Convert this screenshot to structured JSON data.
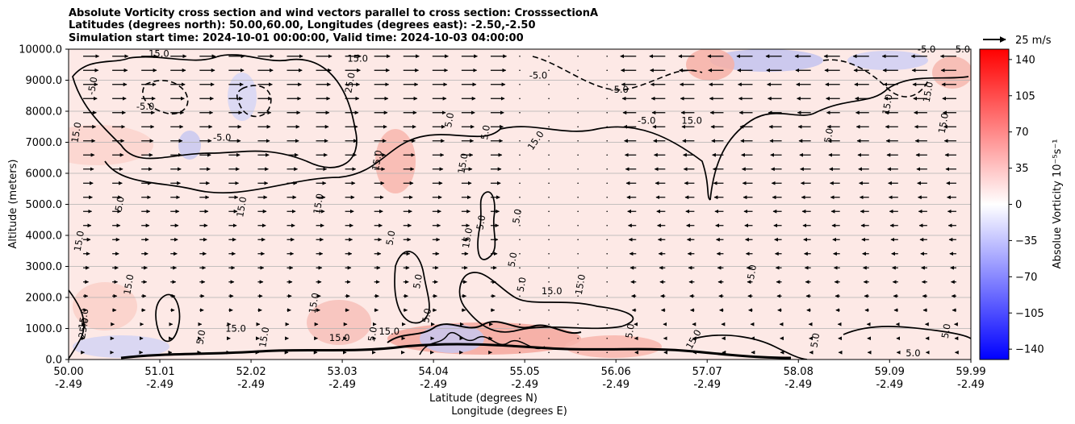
{
  "chart_data": {
    "type": "heatmap",
    "title_lines": [
      "Absolute Vorticity cross section and wind vectors parallel to cross section: CrosssectionA",
      "Latitudes (degrees north): 50.00,60.00, Longitudes (degrees east): -2.50,-2.50",
      "Simulation start time: 2024-10-01 00:00:00, Valid time: 2024-10-03 04:00:00"
    ],
    "xlabel_lines": [
      "Latitude (degrees N)",
      "Longitude (degrees E)"
    ],
    "ylabel": "Altitude (meters)",
    "ylim": [
      0,
      10000
    ],
    "xlim": [
      50.0,
      59.99
    ],
    "x_ticks": [
      {
        "lat": 50.0,
        "lat_label": "50.00",
        "lon_label": "-2.49"
      },
      {
        "lat": 51.01,
        "lat_label": "51.01",
        "lon_label": "-2.49"
      },
      {
        "lat": 52.02,
        "lat_label": "52.02",
        "lon_label": "-2.49"
      },
      {
        "lat": 53.03,
        "lat_label": "53.03",
        "lon_label": "-2.49"
      },
      {
        "lat": 54.04,
        "lat_label": "54.04",
        "lon_label": "-2.49"
      },
      {
        "lat": 55.05,
        "lat_label": "55.05",
        "lon_label": "-2.49"
      },
      {
        "lat": 56.06,
        "lat_label": "56.06",
        "lon_label": "-2.49"
      },
      {
        "lat": 57.07,
        "lat_label": "57.07",
        "lon_label": "-2.49"
      },
      {
        "lat": 58.08,
        "lat_label": "58.08",
        "lon_label": "-2.49"
      },
      {
        "lat": 59.09,
        "lat_label": "59.09",
        "lon_label": "-2.49"
      },
      {
        "lat": 59.99,
        "lat_label": "59.99",
        "lon_label": "-2.49"
      }
    ],
    "y_ticks": [
      {
        "value": 0,
        "label": "0.0"
      },
      {
        "value": 1000,
        "label": "1000.0"
      },
      {
        "value": 2000,
        "label": "2000.0"
      },
      {
        "value": 3000,
        "label": "3000.0"
      },
      {
        "value": 4000,
        "label": "4000.0"
      },
      {
        "value": 5000,
        "label": "5000.0"
      },
      {
        "value": 6000,
        "label": "6000.0"
      },
      {
        "value": 7000,
        "label": "7000.0"
      },
      {
        "value": 8000,
        "label": "8000.0"
      },
      {
        "value": 9000,
        "label": "9000.0"
      },
      {
        "value": 10000,
        "label": "10000.0"
      }
    ],
    "grid": "horizontal",
    "colorbar": {
      "label": "Absolue Vorticity 10⁻⁵s⁻¹",
      "range": [
        -150,
        150
      ],
      "colormap": "bwr",
      "ticks": [
        {
          "value": 140,
          "label": "140"
        },
        {
          "value": 105,
          "label": "105"
        },
        {
          "value": 70,
          "label": "70"
        },
        {
          "value": 35,
          "label": "35"
        },
        {
          "value": 0,
          "label": "0"
        },
        {
          "value": -35,
          "label": "−35"
        },
        {
          "value": -70,
          "label": "−70"
        },
        {
          "value": -105,
          "label": "−105"
        },
        {
          "value": -140,
          "label": "−140"
        }
      ]
    },
    "quiver_key": {
      "label": "25 m/s",
      "speed": 25
    },
    "contour_labels": [
      {
        "text": "15.0",
        "lat": 51.0,
        "alt": 9750,
        "rot": 0
      },
      {
        "text": "15.0",
        "lat": 53.2,
        "alt": 9600,
        "rot": 0
      },
      {
        "text": "-5.0",
        "lat": 50.3,
        "alt": 8800,
        "rot": -80
      },
      {
        "text": "-5.0",
        "lat": 50.85,
        "alt": 8050,
        "rot": 0
      },
      {
        "text": "15.0",
        "lat": 50.12,
        "alt": 7300,
        "rot": -80
      },
      {
        "text": "-5.0",
        "lat": 51.7,
        "alt": 7050,
        "rot": 0
      },
      {
        "text": "25.0",
        "lat": 53.15,
        "alt": 8900,
        "rot": -80
      },
      {
        "text": "15.0",
        "lat": 53.45,
        "alt": 6400,
        "rot": -80
      },
      {
        "text": "-5.0",
        "lat": 55.2,
        "alt": 9050,
        "rot": 0
      },
      {
        "text": "-5.0",
        "lat": 56.1,
        "alt": 8600,
        "rot": 0
      },
      {
        "text": "-5.0",
        "lat": 56.4,
        "alt": 7600,
        "rot": 0
      },
      {
        "text": "15.0",
        "lat": 56.9,
        "alt": 7600,
        "rot": 0
      },
      {
        "text": "15.0",
        "lat": 55.2,
        "alt": 7000,
        "rot": -55
      },
      {
        "text": "5.0",
        "lat": 54.65,
        "alt": 7300,
        "rot": -80
      },
      {
        "text": "5.0",
        "lat": 54.25,
        "alt": 7700,
        "rot": -80
      },
      {
        "text": "15.0",
        "lat": 54.4,
        "alt": 6300,
        "rot": -80
      },
      {
        "text": "5.0",
        "lat": 50.6,
        "alt": 5000,
        "rot": -80
      },
      {
        "text": "15.0",
        "lat": 51.95,
        "alt": 4900,
        "rot": -80
      },
      {
        "text": "15.0",
        "lat": 52.8,
        "alt": 5000,
        "rot": -80
      },
      {
        "text": "15.0",
        "lat": 50.15,
        "alt": 3800,
        "rot": -80
      },
      {
        "text": "5.0",
        "lat": 53.6,
        "alt": 3900,
        "rot": -80
      },
      {
        "text": "5.0",
        "lat": 54.6,
        "alt": 4400,
        "rot": -80
      },
      {
        "text": "5.0",
        "lat": 55.0,
        "alt": 4600,
        "rot": -80
      },
      {
        "text": "5.0",
        "lat": 54.95,
        "alt": 3200,
        "rot": -80
      },
      {
        "text": "15.0",
        "lat": 54.45,
        "alt": 3900,
        "rot": -80
      },
      {
        "text": "5.0",
        "lat": 57.6,
        "alt": 2800,
        "rot": -80
      },
      {
        "text": "15.0",
        "lat": 50.7,
        "alt": 2400,
        "rot": -80
      },
      {
        "text": "15.0",
        "lat": 52.75,
        "alt": 1800,
        "rot": -80
      },
      {
        "text": "15.0",
        "lat": 55.35,
        "alt": 2100,
        "rot": 0
      },
      {
        "text": "15.0",
        "lat": 55.7,
        "alt": 2400,
        "rot": -80
      },
      {
        "text": "5.0",
        "lat": 55.05,
        "alt": 2400,
        "rot": -80
      },
      {
        "text": "5.0",
        "lat": 53.9,
        "alt": 2500,
        "rot": -80
      },
      {
        "text": "15.0",
        "lat": 50.2,
        "alt": 1300,
        "rot": -80
      },
      {
        "text": "25.0",
        "lat": 50.2,
        "alt": 1000,
        "rot": -80
      },
      {
        "text": "15.0",
        "lat": 51.85,
        "alt": 900,
        "rot": 0
      },
      {
        "text": "15.0",
        "lat": 53.0,
        "alt": 600,
        "rot": 0
      },
      {
        "text": "5.0",
        "lat": 51.5,
        "alt": 700,
        "rot": -80
      },
      {
        "text": "15.0",
        "lat": 52.2,
        "alt": 700,
        "rot": -80
      },
      {
        "text": "5.0",
        "lat": 53.4,
        "alt": 800,
        "rot": -80
      },
      {
        "text": "15.0",
        "lat": 53.55,
        "alt": 800,
        "rot": 0
      },
      {
        "text": "5.0",
        "lat": 54.0,
        "alt": 1400,
        "rot": -80
      },
      {
        "text": "5.0",
        "lat": 56.25,
        "alt": 900,
        "rot": -80
      },
      {
        "text": "15.0",
        "lat": 56.95,
        "alt": 600,
        "rot": -60
      },
      {
        "text": "5.0",
        "lat": 58.3,
        "alt": 600,
        "rot": -80
      },
      {
        "text": "5.0",
        "lat": 59.75,
        "alt": 900,
        "rot": -80
      },
      {
        "text": "5.0",
        "lat": 59.35,
        "alt": 100,
        "rot": 0
      },
      {
        "text": "15.0",
        "lat": 59.72,
        "alt": 7600,
        "rot": -80
      },
      {
        "text": "15.0",
        "lat": 59.55,
        "alt": 8600,
        "rot": -80
      },
      {
        "text": "5.0",
        "lat": 59.9,
        "alt": 9900,
        "rot": 0
      },
      {
        "text": "-5.0",
        "lat": 59.5,
        "alt": 9900,
        "rot": 0
      },
      {
        "text": "5.0",
        "lat": 58.45,
        "alt": 7200,
        "rot": -80
      },
      {
        "text": "15.0",
        "lat": 59.1,
        "alt": 8200,
        "rot": -80
      }
    ],
    "notes": "Background field is weakly positive (≈5–25) almost everywhere, with negative (blue) pockets near 9500–10000 m around 57.2–59.5°N and near 51.2°N, 7000 m; strong alternating values near the surface 53.5–57.5°N. Wind vectors point toward increasing latitude west of ~55°N and toward decreasing latitude north of ~56°N, strongest aloft."
  }
}
